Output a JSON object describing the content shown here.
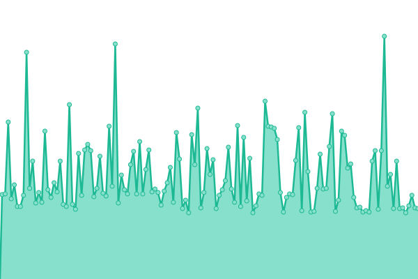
{
  "chart_data": {
    "type": "area",
    "color": "#1db994",
    "fill": "#86e0cb",
    "ylim": [
      0,
      100
    ],
    "values": [
      30.25,
      30.5,
      56.25,
      28.75,
      33.75,
      26,
      26,
      30,
      81.25,
      32.5,
      42.25,
      27.25,
      31,
      27.5,
      53,
      32,
      29.25,
      34.5,
      31.25,
      42.25,
      26.75,
      26,
      62.5,
      26.75,
      25,
      45,
      30,
      46.25,
      48.25,
      46,
      29.5,
      32.5,
      44,
      30.75,
      29.75,
      54.75,
      33.25,
      84.25,
      27.25,
      37.25,
      32,
      30.5,
      41,
      45.75,
      30.5,
      49.25,
      30.5,
      39.25,
      46.25,
      31.25,
      32.25,
      31,
      26.5,
      31.5,
      34.5,
      40,
      27.5,
      52.5,
      43,
      25.25,
      28.25,
      23.75,
      51.75,
      41,
      61.25,
      25.5,
      31,
      46.75,
      37.5,
      42.75,
      25.25,
      30,
      32,
      35.25,
      47.25,
      32.25,
      27.5,
      55,
      26,
      50.75,
      28,
      43.25,
      23.75,
      26.25,
      30.5,
      30,
      63.75,
      54.75,
      54.5,
      54,
      50,
      31,
      24,
      29.25,
      30.5,
      30.25,
      42.5,
      54.25,
      24.5,
      59.75,
      38.5,
      24,
      24.25,
      32.5,
      44.75,
      32.25,
      32.5,
      47.5,
      59.25,
      24.25,
      28.25,
      53,
      51.5,
      39.75,
      41.25,
      29.25,
      25.5,
      25.75,
      24,
      24.5,
      24,
      42.25,
      46,
      25,
      46,
      87,
      33.25,
      37.5,
      25.25,
      42.25,
      25.25,
      25.5,
      23.75,
      26.25,
      30,
      25.5,
      25.25
    ]
  }
}
